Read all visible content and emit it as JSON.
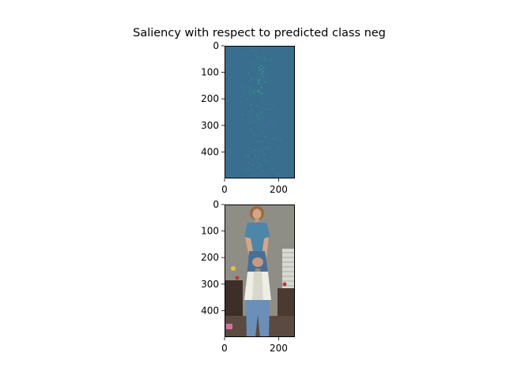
{
  "figure": {
    "title": "Saliency with respect to predicted class neg"
  },
  "chart_data": [
    {
      "type": "heatmap",
      "name": "saliency map",
      "image_width": 260,
      "image_height": 500,
      "xlim": [
        0,
        260
      ],
      "ylim": [
        500,
        0
      ],
      "x_ticks": [
        0,
        200
      ],
      "y_ticks": [
        0,
        100,
        200,
        300,
        400
      ],
      "colormap": "viridis",
      "background_color": "#3a6e8f",
      "highlight_color": "#2ab58a"
    },
    {
      "type": "image",
      "name": "input photo",
      "image_width": 260,
      "image_height": 500,
      "xlim": [
        0,
        260
      ],
      "ylim": [
        500,
        0
      ],
      "x_ticks": [
        0,
        200
      ],
      "y_ticks": [
        0,
        100,
        200,
        300,
        400
      ],
      "colors": {
        "wall": "#8f8e86",
        "shirt": "#4d86a8",
        "jeans": "#4a6f96",
        "hair": "#9a6a3c",
        "skin": "#d4a687",
        "vest": "#eeeee4",
        "floor": "#5a4a40",
        "window": "#d9d9d3"
      }
    }
  ]
}
